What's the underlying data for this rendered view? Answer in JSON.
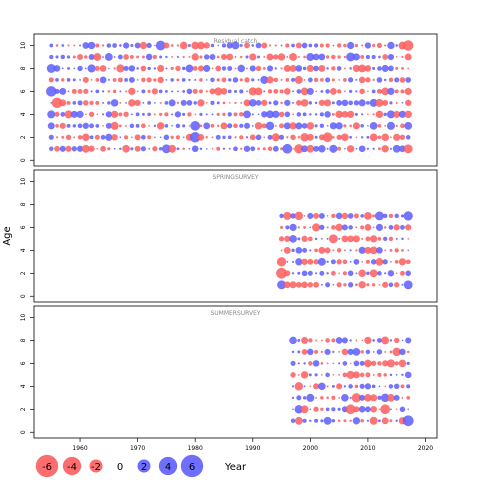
{
  "chart_data": {
    "type": "scatter",
    "subtype": "bubble residual plot",
    "ylabel": "Age",
    "xlabel": "Year",
    "x_ticks": [
      1960,
      1970,
      1980,
      1990,
      2000,
      2010,
      2020
    ],
    "y_ticks": [
      0,
      2,
      4,
      6,
      8,
      10
    ],
    "xlim": [
      1952,
      2022
    ],
    "ylim": [
      -0.5,
      11
    ],
    "colors": {
      "positive": "#6666ff",
      "negative": "#ff6666",
      "edge_positive": "#0000cc",
      "edge_negative": "#cc0000"
    },
    "size_max_abs": 6,
    "legend": {
      "values": [
        -6,
        -4,
        -2,
        0,
        2,
        4,
        6
      ],
      "labels": [
        "-6",
        "-4",
        "-2",
        "0",
        "2",
        "4",
        "6"
      ]
    },
    "panels": [
      {
        "title": "Residual catch",
        "years": [
          1955,
          2017
        ],
        "ages": [
          1,
          2,
          3,
          4,
          5,
          6,
          7,
          8,
          9,
          10
        ],
        "seed": 11,
        "highlights": [
          [
            2017,
            10,
            -2.8
          ],
          [
            1974,
            10,
            2.4
          ],
          [
            1955,
            8,
            2.0
          ],
          [
            1955,
            6,
            2.8
          ],
          [
            1956,
            5,
            -2.8
          ],
          [
            1955,
            4,
            1.6
          ],
          [
            1980,
            3,
            2.4
          ],
          [
            1980,
            2,
            2.8
          ],
          [
            1975,
            1,
            2.0
          ],
          [
            1996,
            1,
            2.4
          ],
          [
            1998,
            1,
            -2.2
          ],
          [
            2003,
            2,
            -2.4
          ],
          [
            2017,
            1,
            -2.0
          ],
          [
            1993,
            3,
            1.8
          ],
          [
            2007,
            9,
            2.0
          ],
          [
            1999,
            2,
            -1.8
          ]
        ]
      },
      {
        "title": "SPRINGSURVEY",
        "years": [
          1995,
          2017
        ],
        "ages": [
          1,
          2,
          3,
          4,
          5,
          6,
          7
        ],
        "seed": 23,
        "highlights": [
          [
            1995,
            2,
            -3.0
          ],
          [
            1995,
            3,
            -2.2
          ],
          [
            2017,
            7,
            2.2
          ],
          [
            2012,
            7,
            2.0
          ],
          [
            2017,
            1,
            2.0
          ],
          [
            2004,
            5,
            -2.0
          ],
          [
            1995,
            1,
            2.0
          ],
          [
            1998,
            7,
            -1.8
          ]
        ]
      },
      {
        "title": "SUMMERSURVEY",
        "years": [
          1997,
          2017
        ],
        "ages": [
          1,
          2,
          3,
          4,
          5,
          6,
          7,
          8
        ],
        "seed": 37,
        "highlights": [
          [
            2017,
            1,
            3.0
          ],
          [
            2013,
            2,
            -2.4
          ],
          [
            2007,
            2,
            -2.4
          ],
          [
            2008,
            3,
            -2.2
          ],
          [
            1998,
            4,
            -1.8
          ],
          [
            2015,
            7,
            -1.8
          ],
          [
            2013,
            3,
            1.8
          ],
          [
            1998,
            2,
            1.8
          ]
        ]
      }
    ]
  }
}
